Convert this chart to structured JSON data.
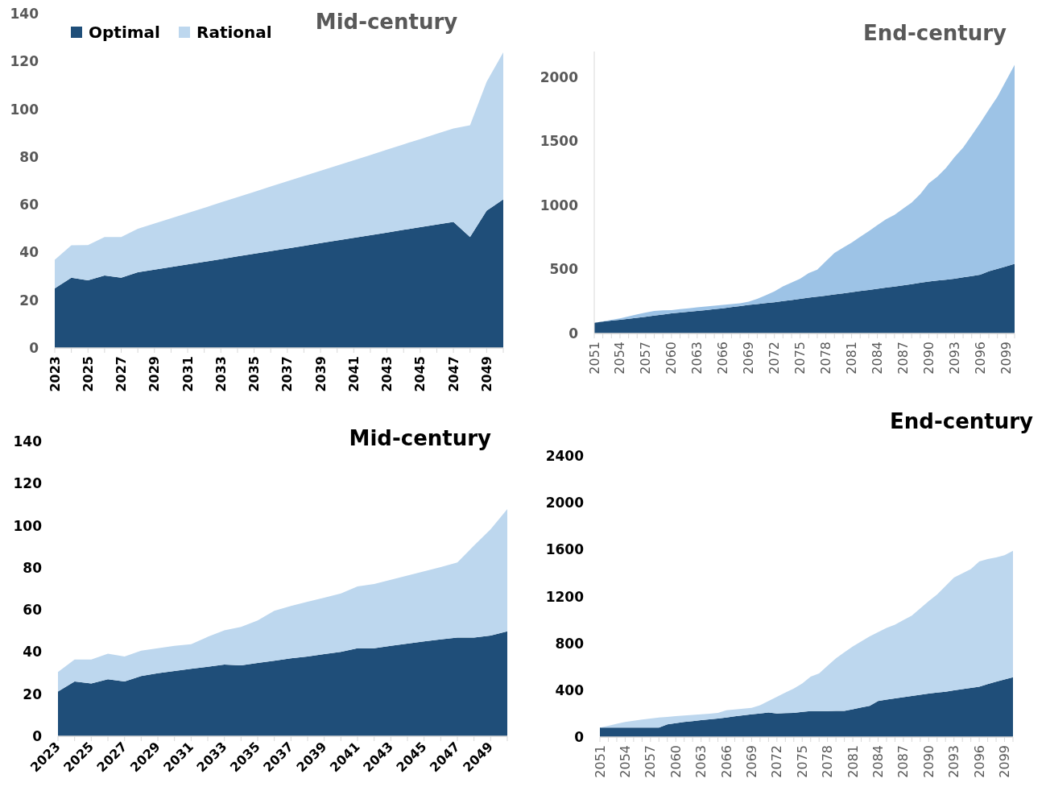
{
  "chart_data": [
    {
      "type": "area",
      "title": "Mid-century",
      "stacked": true,
      "legend": "top left",
      "ylim": [
        0,
        140
      ],
      "yticks": [
        0,
        20,
        40,
        60,
        80,
        100,
        120,
        140
      ],
      "categories": [
        "2023",
        null,
        "2025",
        null,
        "2027",
        null,
        "2029",
        null,
        "2031",
        null,
        "2033",
        null,
        "2035",
        null,
        "2037",
        null,
        "2039",
        null,
        "2041",
        null,
        "2043",
        null,
        "2045",
        null,
        "2047",
        null,
        "2049",
        null
      ],
      "series": [
        {
          "name": "Optimal",
          "color": "#1f4e79",
          "values": [
            25,
            29.4,
            28.3,
            30.4,
            29.4,
            31.7,
            32.8,
            33.9,
            35.0,
            36.1,
            37.2,
            38.4,
            39.5,
            40.6,
            41.7,
            42.8,
            43.9,
            45.0,
            46.1,
            47.2,
            48.3,
            49.5,
            50.6,
            51.7,
            52.8,
            46.5,
            57.5,
            62.2
          ]
        },
        {
          "name": "Rational",
          "color": "#bdd7ee",
          "values": [
            11.9,
            13.6,
            14.8,
            16.1,
            17.1,
            18.2,
            19.3,
            20.4,
            21.5,
            22.6,
            23.8,
            24.8,
            25.9,
            27.0,
            28.1,
            29.2,
            30.3,
            31.4,
            32.5,
            33.6,
            34.8,
            35.8,
            36.9,
            38.0,
            39.1,
            46.8,
            54.0,
            61.6
          ]
        }
      ]
    },
    {
      "type": "area",
      "title": "End-century",
      "stacked": true,
      "ylim": [
        0,
        2200
      ],
      "yticks": [
        0,
        500,
        1000,
        1500,
        2000
      ],
      "categories": [
        "2051",
        null,
        null,
        "2054",
        null,
        null,
        "2057",
        null,
        null,
        "2060",
        null,
        null,
        "2063",
        null,
        null,
        "2066",
        null,
        null,
        "2069",
        null,
        null,
        "2072",
        null,
        null,
        "2075",
        null,
        null,
        "2078",
        null,
        null,
        "2081",
        null,
        null,
        "2084",
        null,
        null,
        "2087",
        null,
        null,
        "2090",
        null,
        null,
        "2093",
        null,
        null,
        "2096",
        null,
        null,
        "2099",
        null
      ],
      "series": [
        {
          "color": "#1f4e79",
          "values": [
            84,
            92,
            100,
            107,
            115,
            123,
            131,
            140,
            148,
            157,
            163,
            170,
            176,
            183,
            190,
            197,
            206,
            214,
            223,
            230,
            237,
            244,
            253,
            261,
            270,
            279,
            287,
            296,
            305,
            313,
            322,
            331,
            340,
            349,
            358,
            366,
            375,
            385,
            396,
            406,
            413,
            420,
            427,
            438,
            448,
            459,
            485,
            504,
            524,
            543
          ]
        },
        {
          "color": "#9dc3e6",
          "values": [
            0,
            3,
            7,
            11,
            19,
            26,
            32,
            36,
            32,
            26,
            27,
            27,
            28,
            27,
            27,
            26,
            24,
            22,
            26,
            40,
            62,
            84,
            114,
            136,
            157,
            193,
            211,
            268,
            324,
            356,
            386,
            423,
            459,
            496,
            533,
            559,
            599,
            637,
            692,
            766,
            811,
            872,
            949,
            1012,
            1099,
            1185,
            1263,
            1344,
            1448,
            1554
          ]
        }
      ]
    },
    {
      "type": "area",
      "title": "Mid-century",
      "stacked": true,
      "ylim": [
        0,
        140
      ],
      "yticks": [
        0,
        20,
        40,
        60,
        80,
        100,
        120,
        140
      ],
      "categories": [
        "2023",
        null,
        "2025",
        null,
        "2027",
        null,
        "2029",
        null,
        "2031",
        null,
        "2033",
        null,
        "2035",
        null,
        "2037",
        null,
        "2039",
        null,
        "2041",
        null,
        "2043",
        null,
        "2045",
        null,
        "2047",
        null,
        "2049",
        null
      ],
      "series": [
        {
          "color": "#1f4e79",
          "values": [
            21.2,
            26,
            25.1,
            27.1,
            26,
            28.6,
            29.9,
            31,
            32,
            33,
            34,
            33.7,
            34.8,
            35.9,
            37,
            37.9,
            39,
            40.1,
            41.8,
            41.8,
            42.9,
            44,
            45,
            46,
            46.9,
            46.9,
            47.8,
            49.8
          ]
        },
        {
          "color": "#bdd7ee",
          "values": [
            9.3,
            10.4,
            11.3,
            12.1,
            11.9,
            12,
            11.9,
            11.9,
            11.7,
            14.2,
            16.3,
            18.2,
            20.2,
            23.7,
            24.9,
            26,
            26.8,
            27.7,
            29.3,
            30.5,
            31.4,
            32.3,
            33.3,
            34.3,
            35.6,
            43.7,
            50.5,
            58.1
          ]
        }
      ]
    },
    {
      "type": "area",
      "title": "End-century",
      "stacked": true,
      "ylim": [
        0,
        2400
      ],
      "yticks": [
        0,
        400,
        800,
        1200,
        1600,
        2000,
        2400
      ],
      "categories": [
        "2051",
        null,
        null,
        "2054",
        null,
        null,
        "2057",
        null,
        null,
        "2060",
        null,
        null,
        "2063",
        null,
        null,
        "2066",
        null,
        null,
        "2069",
        null,
        null,
        "2072",
        null,
        null,
        "2075",
        null,
        null,
        "2078",
        null,
        null,
        "2081",
        null,
        null,
        "2084",
        null,
        null,
        "2087",
        null,
        null,
        "2090",
        null,
        null,
        "2093",
        null,
        null,
        "2096",
        null,
        null,
        "2099",
        null
      ],
      "series": [
        {
          "color": "#1f4e79",
          "values": [
            80,
            80,
            80,
            80,
            80,
            80,
            80,
            80,
            109,
            119,
            129,
            136,
            144,
            151,
            158,
            167,
            177,
            186,
            195,
            202,
            209,
            201,
            204,
            206,
            215,
            221,
            222,
            222,
            223,
            223,
            237,
            252,
            266,
            307,
            319,
            330,
            340,
            350,
            361,
            372,
            380,
            387,
            399,
            410,
            420,
            430,
            453,
            472,
            491,
            510
          ]
        },
        {
          "color": "#bdd7ee",
          "values": [
            0,
            16,
            33,
            49,
            59,
            69,
            78,
            86,
            63,
            59,
            55,
            53,
            51,
            49,
            48,
            62,
            59,
            56,
            54,
            70,
            99,
            143,
            176,
            209,
            243,
            295,
            322,
            387,
            450,
            501,
            537,
            565,
            594,
            589,
            612,
            630,
            659,
            687,
            738,
            788,
            838,
            903,
            962,
            987,
            1013,
            1069,
            1066,
            1061,
            1062,
            1080
          ]
        }
      ]
    }
  ]
}
